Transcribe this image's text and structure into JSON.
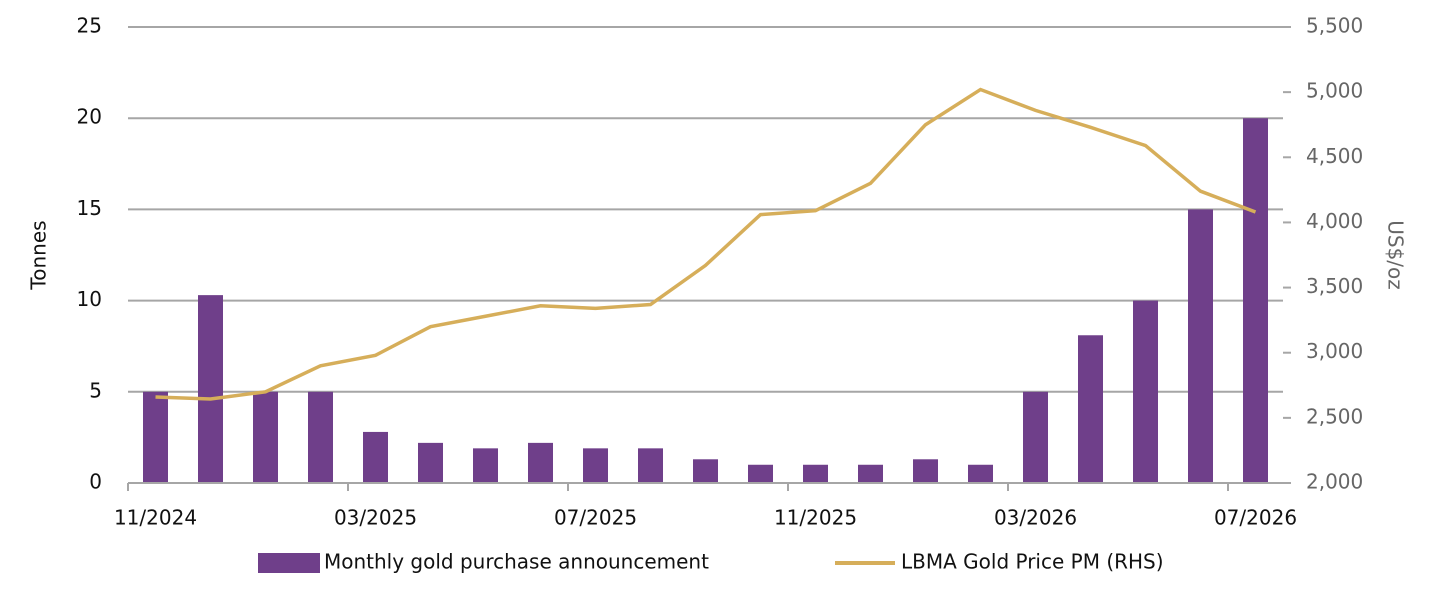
{
  "chart_data": {
    "type": "bar+line",
    "categories": [
      "11/2024",
      null,
      null,
      null,
      "03/2025",
      null,
      null,
      null,
      "07/2025",
      null,
      null,
      null,
      "11/2025",
      null,
      null,
      null,
      "03/2026",
      null,
      null,
      null,
      "07/2026"
    ],
    "series": [
      {
        "name": "Monthly gold purchase announcement",
        "type": "bar",
        "color": "#6f3f8a",
        "values": [
          5,
          10.3,
          5,
          5,
          2.8,
          2.2,
          1.9,
          2.2,
          1.9,
          1.9,
          1.3,
          1,
          1,
          1,
          1.3,
          1,
          5,
          8.1,
          10,
          15,
          20
        ]
      },
      {
        "name": "LBMA Gold Price PM (RHS)",
        "type": "line",
        "axis": "y2",
        "color": "#d6ae5a",
        "values": [
          2660,
          2645,
          2700,
          2900,
          2980,
          3200,
          3280,
          3360,
          3340,
          3370,
          3670,
          4060,
          4090,
          4300,
          4750,
          5020,
          4860,
          4730,
          4590,
          4240,
          4080
        ]
      }
    ],
    "y_label": "Tonnes",
    "y2_label": "US$/oz",
    "ylim": [
      0,
      25
    ],
    "yticks": [
      0,
      5,
      10,
      15,
      20,
      25
    ],
    "y2lim": [
      2000,
      5500
    ],
    "y2ticks": [
      {
        "value": 2000,
        "label": "2,000"
      },
      {
        "value": 2500,
        "label": "2,500"
      },
      {
        "value": 3000,
        "label": "3,000"
      },
      {
        "value": 3500,
        "label": "3,500"
      },
      {
        "value": 4000,
        "label": "4,000"
      },
      {
        "value": 4500,
        "label": "4,500"
      },
      {
        "value": 5000,
        "label": "5,000"
      },
      {
        "value": 5500,
        "label": "5,500"
      }
    ],
    "grid": true,
    "legend": "bottom"
  }
}
